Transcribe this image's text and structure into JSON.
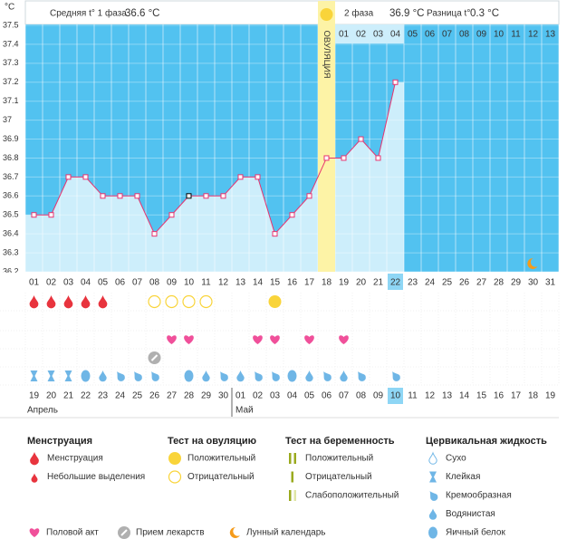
{
  "chart_data": {
    "type": "line",
    "y_unit": "°C",
    "summary": {
      "phase1_label": "Средняя t° 1 фаза",
      "phase1_value": "36.6 °C",
      "phase2_label": "2 фаза",
      "phase2_value": "36.9 °C",
      "diff_label": "Разница t°",
      "diff_value": "0.3 °C"
    },
    "ovulation_label": "ОВУЛЯЦИЯ",
    "ovulation_day": "18",
    "today": "22",
    "selected_day": "10",
    "luteal_days": [
      "01",
      "02",
      "03",
      "04",
      "05",
      "06",
      "07",
      "08",
      "09",
      "10",
      "11",
      "12",
      "13"
    ],
    "categories": [
      "01",
      "02",
      "03",
      "04",
      "05",
      "06",
      "07",
      "08",
      "09",
      "10",
      "11",
      "12",
      "13",
      "14",
      "15",
      "16",
      "17",
      "18",
      "19",
      "20",
      "21",
      "22",
      "23",
      "24",
      "25",
      "26",
      "27",
      "28",
      "29",
      "30",
      "31"
    ],
    "values": [
      36.5,
      36.5,
      36.7,
      36.7,
      36.6,
      36.6,
      36.6,
      36.4,
      36.5,
      36.6,
      36.6,
      36.6,
      36.7,
      36.7,
      36.4,
      36.5,
      36.6,
      36.8,
      36.8,
      36.9,
      36.8,
      37.2,
      null,
      null,
      null,
      null,
      null,
      null,
      null,
      null,
      null
    ],
    "color": "#e8336f",
    "ylim": [
      36.2,
      37.5
    ],
    "yticks": [
      36.2,
      36.3,
      36.4,
      36.5,
      36.6,
      36.7,
      36.8,
      36.9,
      37,
      37.1,
      37.2,
      37.3,
      37.4,
      37.5
    ],
    "grid": true,
    "rows": [
      [
        "heavy",
        "heavy",
        "heavy",
        "heavy",
        "heavy",
        null,
        null,
        "negative",
        "negative",
        "negative",
        "negative",
        null,
        null,
        null,
        "positive",
        null,
        null,
        null,
        null,
        null,
        null,
        null,
        null,
        null,
        null,
        null,
        null,
        null,
        null,
        null,
        null
      ],
      [
        null,
        null,
        null,
        null,
        null,
        null,
        null,
        null,
        null,
        null,
        null,
        null,
        null,
        null,
        null,
        null,
        null,
        null,
        null,
        null,
        null,
        null,
        null,
        null,
        null,
        null,
        null,
        null,
        null,
        null,
        null
      ],
      [
        null,
        null,
        null,
        null,
        null,
        null,
        null,
        null,
        "heart",
        "heart",
        null,
        null,
        null,
        "heart",
        "heart",
        null,
        "heart",
        null,
        "heart",
        null,
        null,
        null,
        null,
        null,
        null,
        null,
        null,
        null,
        null,
        null,
        null
      ],
      [
        null,
        null,
        null,
        null,
        null,
        null,
        null,
        "pill",
        null,
        null,
        null,
        null,
        null,
        null,
        null,
        null,
        null,
        null,
        null,
        null,
        null,
        null,
        null,
        null,
        null,
        null,
        null,
        null,
        null,
        null,
        null
      ],
      [
        "sticky",
        "sticky",
        "sticky",
        "egg",
        "watery",
        "creamy",
        "creamy",
        "creamy",
        null,
        "egg",
        "watery",
        "creamy",
        "watery",
        "creamy",
        "creamy",
        "egg",
        "watery",
        "creamy",
        "watery",
        "creamy",
        null,
        "creamy",
        null,
        null,
        null,
        null,
        null,
        null,
        null,
        null,
        null
      ]
    ],
    "moon_day": "30",
    "dates": [
      "19",
      "20",
      "21",
      "22",
      "23",
      "24",
      "25",
      "26",
      "27",
      "28",
      "29",
      "30",
      "01",
      "02",
      "03",
      "04",
      "05",
      "06",
      "07",
      "08",
      "09",
      "10",
      "11",
      "12",
      "13",
      "14",
      "15",
      "16",
      "17",
      "18",
      "19"
    ],
    "weekend": [
      false,
      true,
      true,
      false,
      false,
      false,
      false,
      false,
      true,
      true,
      false,
      false,
      false,
      false,
      false,
      true,
      true,
      false,
      false,
      false,
      false,
      false,
      true,
      true,
      false,
      false,
      false,
      false,
      false,
      true,
      true
    ],
    "today_date": "10",
    "months": [
      "Апрель",
      "Май"
    ]
  },
  "legend": {
    "groups": [
      {
        "title": "Менструация",
        "items": [
          {
            "label": "Менструация",
            "icon": "heavy"
          },
          {
            "label": "Небольшие выделения",
            "icon": "light"
          }
        ]
      },
      {
        "title": "Тест на овуляцию",
        "items": [
          {
            "label": "Положительный",
            "icon": "positive"
          },
          {
            "label": "Отрицательный",
            "icon": "negative"
          }
        ]
      },
      {
        "title": "Тест на беременность",
        "items": [
          {
            "label": "Положительный",
            "icon": "preg_pos"
          },
          {
            "label": "Отрицательный",
            "icon": "preg_neg"
          },
          {
            "label": "Слабоположительный",
            "icon": "preg_weak"
          }
        ]
      },
      {
        "title": "Цервикальная жидкость",
        "items": [
          {
            "label": "Сухо",
            "icon": "dry"
          },
          {
            "label": "Клейкая",
            "icon": "sticky"
          },
          {
            "label": "Кремообразная",
            "icon": "creamy"
          },
          {
            "label": "Водянистая",
            "icon": "watery"
          },
          {
            "label": "Яичный белок",
            "icon": "egg"
          }
        ]
      }
    ],
    "extras": [
      {
        "label": "Половой акт",
        "icon": "heart"
      },
      {
        "label": "Прием лекарств",
        "icon": "pill"
      },
      {
        "label": "Лунный календарь",
        "icon": "moon"
      }
    ]
  }
}
